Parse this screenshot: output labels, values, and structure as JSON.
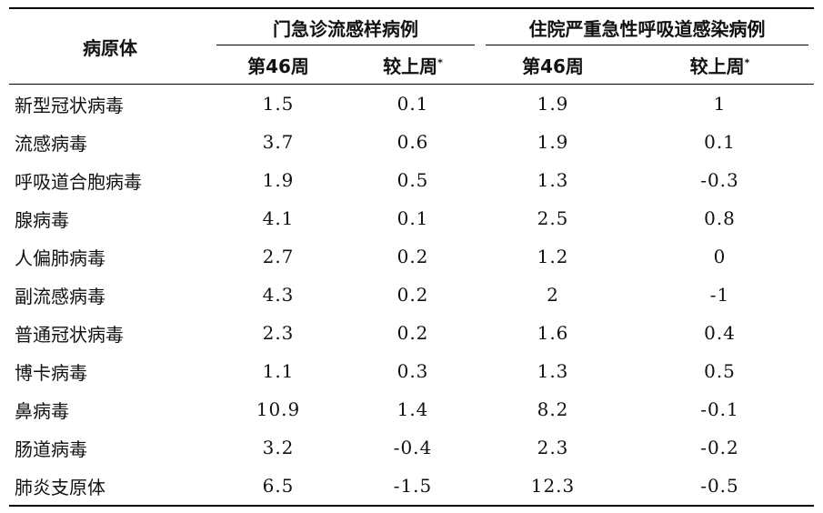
{
  "header": {
    "pathogen_label": "病原体",
    "group1_label": "门急诊流感样病例",
    "group2_label": "住院严重急性呼吸道感染病例",
    "week_label": "第46周",
    "change_label": "较上周",
    "change_marker": "*"
  },
  "rows": [
    {
      "name": "新型冠状病毒",
      "v": [
        "1.5",
        "0.1",
        "1.9",
        "1"
      ]
    },
    {
      "name": "流感病毒",
      "v": [
        "3.7",
        "0.6",
        "1.9",
        "0.1"
      ]
    },
    {
      "name": "呼吸道合胞病毒",
      "v": [
        "1.9",
        "0.5",
        "1.3",
        "-0.3"
      ]
    },
    {
      "name": "腺病毒",
      "v": [
        "4.1",
        "0.1",
        "2.5",
        "0.8"
      ]
    },
    {
      "name": "人偏肺病毒",
      "v": [
        "2.7",
        "0.2",
        "1.2",
        "0"
      ]
    },
    {
      "name": "副流感病毒",
      "v": [
        "4.3",
        "0.2",
        "2",
        "-1"
      ]
    },
    {
      "name": "普通冠状病毒",
      "v": [
        "2.3",
        "0.2",
        "1.6",
        "0.4"
      ]
    },
    {
      "name": "博卡病毒",
      "v": [
        "1.1",
        "0.3",
        "1.3",
        "0.5"
      ]
    },
    {
      "name": "鼻病毒",
      "v": [
        "10.9",
        "1.4",
        "8.2",
        "-0.1"
      ]
    },
    {
      "name": "肠道病毒",
      "v": [
        "3.2",
        "-0.4",
        "2.3",
        "-0.2"
      ]
    },
    {
      "name": "肺炎支原体",
      "v": [
        "6.5",
        "-1.5",
        "12.3",
        "-0.5"
      ]
    }
  ]
}
